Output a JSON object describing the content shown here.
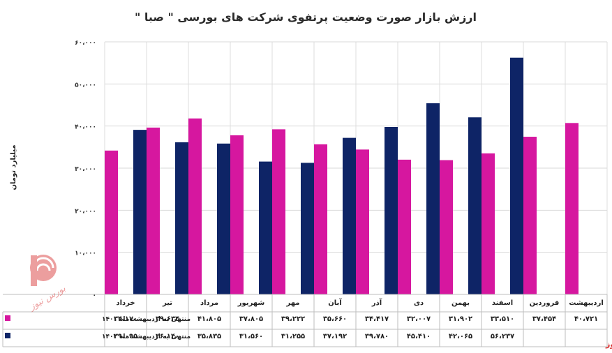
{
  "chart_data": {
    "type": "bar",
    "title": "ارزش بازار صورت وضعیت پرتفوی شرکت های بورسی \" صبا \"",
    "ylabel": "میلیارد تومان",
    "ylim": [
      0,
      60000
    ],
    "yticks": [
      "۰",
      "۱۰،۰۰۰",
      "۲۰،۰۰۰",
      "۳۰،۰۰۰",
      "۴۰،۰۰۰",
      "۵۰،۰۰۰",
      "۶۰،۰۰۰"
    ],
    "grid": true,
    "legend": "bottom-table",
    "categories": [
      "خرداد",
      "تیر",
      "مرداد",
      "شهریور",
      "مهر",
      "آبان",
      "آذر",
      "دی",
      "بهمن",
      "اسفند",
      "فروردین",
      "اردیبهشت"
    ],
    "series": [
      {
        "name": "منتهی به اردیبهشت‌ماه ۱۴۰۱",
        "color": "#d6179f",
        "values": [
          34170,
          39634,
          41805,
          37805,
          39222,
          35660,
          34417,
          32007,
          31902,
          33510,
          37454,
          40721
        ],
        "labels": [
          "۳۴،۱۷۰",
          "۳۹،۶۳۴",
          "۴۱،۸۰۵",
          "۳۷،۸۰۵",
          "۳۹،۲۲۲",
          "۳۵،۶۶۰",
          "۳۴،۴۱۷",
          "۳۲،۰۰۷",
          "۳۱،۹۰۲",
          "۳۳،۵۱۰",
          "۳۷،۴۵۴",
          "۴۰،۷۲۱"
        ]
      },
      {
        "name": "منتهی به اردیبهشت‌ماه ۱۴۰۲",
        "color": "#0e2466",
        "values": [
          39095,
          36140,
          35835,
          31560,
          31255,
          37192,
          39780,
          45410,
          42065,
          56237,
          null,
          null
        ],
        "labels": [
          "۳۹،۰۹۵",
          "۳۶،۱۴۰",
          "۳۵،۸۳۵",
          "۳۱،۵۶۰",
          "۳۱،۲۵۵",
          "۳۷،۱۹۲",
          "۳۹،۷۸۰",
          "۴۵،۴۱۰",
          "۴۲،۰۶۵",
          "۵۶،۲۳۷",
          "",
          ""
        ]
      }
    ]
  },
  "watermark": {
    "text": "بورس نیوز",
    "color": "#d62a2a"
  }
}
